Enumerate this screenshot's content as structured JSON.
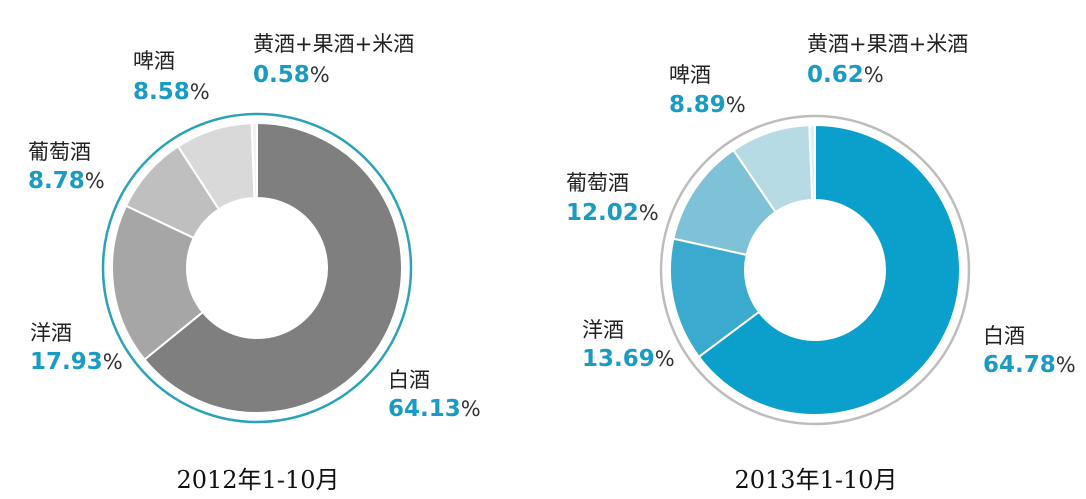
{
  "chart_data": [
    {
      "type": "pie",
      "subtype": "donut",
      "caption": "2012年1-10月",
      "categories": [
        "白酒",
        "洋酒",
        "葡萄酒",
        "啤酒",
        "黄酒+果酒+米酒"
      ],
      "values": [
        64.13,
        17.93,
        8.78,
        8.58,
        0.58
      ],
      "value_labels": [
        "64.13",
        "17.93",
        "8.78",
        "8.58",
        "0.58"
      ],
      "unit": "%",
      "colors": [
        "#7f7f7f",
        "#a6a6a6",
        "#bfbfbf",
        "#d9d9d9",
        "#f2f2f2"
      ],
      "outer_ring_color": "#2aa3b8",
      "label_color": "#1a9bc4"
    },
    {
      "type": "pie",
      "subtype": "donut",
      "caption": "2013年1-10月",
      "categories": [
        "白酒",
        "洋酒",
        "葡萄酒",
        "啤酒",
        "黄酒+果酒+米酒"
      ],
      "values": [
        64.78,
        13.69,
        12.02,
        8.89,
        0.62
      ],
      "value_labels": [
        "64.78",
        "13.69",
        "12.02",
        "8.89",
        "0.62"
      ],
      "unit": "%",
      "colors": [
        "#0aa0cb",
        "#3aaace",
        "#7fc1d6",
        "#b7dbe5",
        "#dff0f5"
      ],
      "outer_ring_color": "#bdbdbd",
      "label_color": "#1a9bc4"
    }
  ]
}
